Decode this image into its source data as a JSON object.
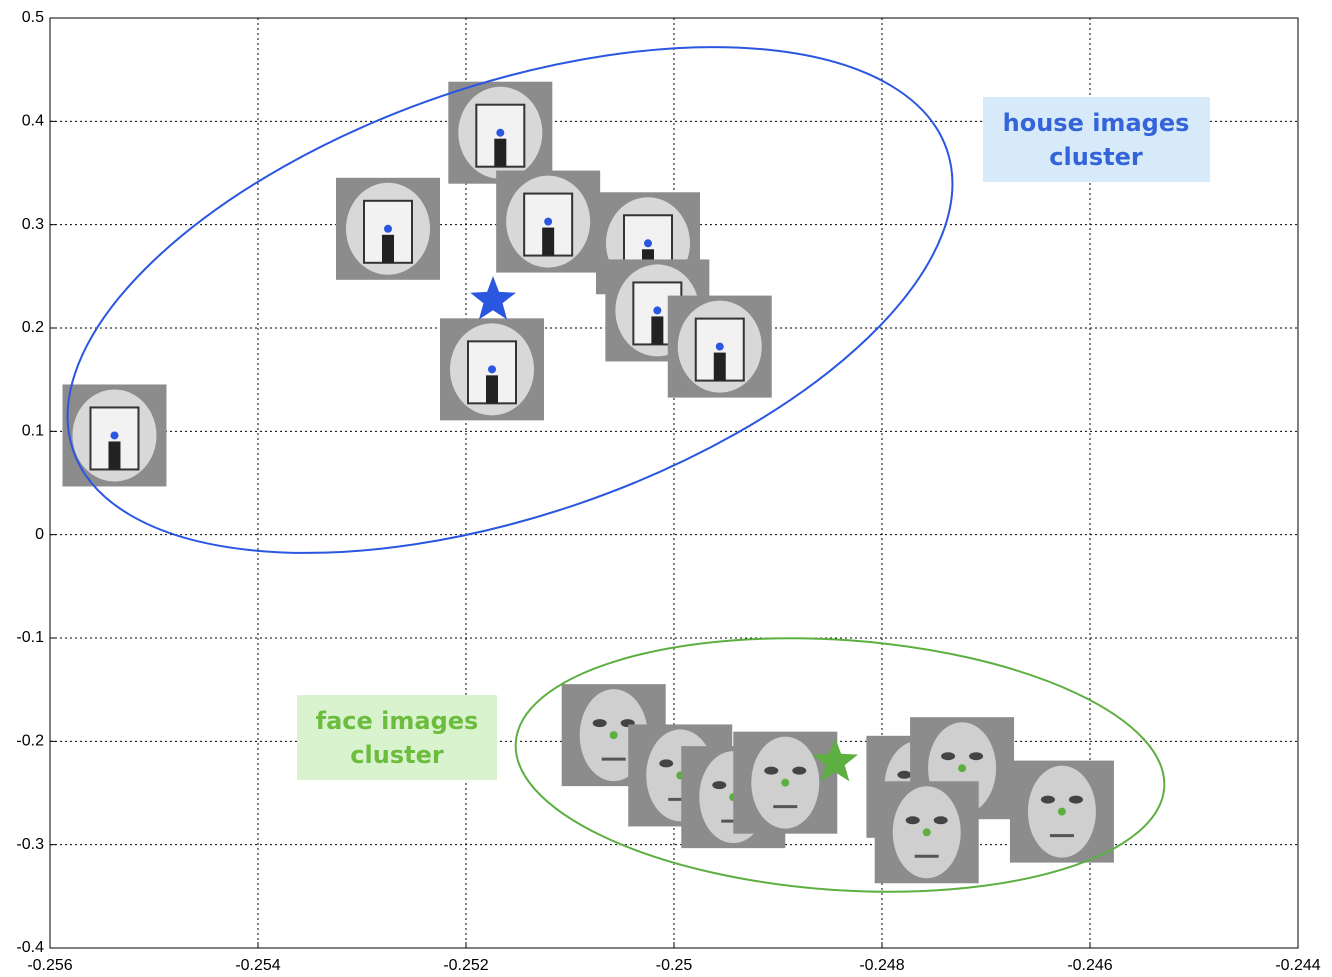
{
  "chart_data": {
    "type": "scatter",
    "xlim": [
      -0.256,
      -0.244
    ],
    "xticks": [
      -0.256,
      -0.254,
      -0.252,
      -0.25,
      -0.248,
      -0.246,
      -0.244
    ],
    "ylim": [
      -0.4,
      0.5
    ],
    "yticks": [
      0.5,
      0.4,
      0.3,
      0.2,
      0.1,
      0,
      -0.1,
      -0.2,
      -0.3,
      -0.4
    ],
    "grid": true,
    "series": [
      {
        "color": "#2a56e0",
        "x": [
          -0.25538,
          -0.25275,
          -0.25167,
          -0.25121,
          -0.25025,
          -0.25016,
          -0.24956,
          -0.25175
        ],
        "y": [
          0.096,
          0.296,
          0.389,
          0.303,
          0.282,
          0.217,
          0.182,
          0.16
        ],
        "centroid": [
          -0.25174,
          0.227
        ]
      },
      {
        "color": "#5caf40",
        "x": [
          -0.25058,
          -0.24994,
          -0.24943,
          -0.24893,
          -0.24765,
          -0.24723,
          -0.24757,
          -0.24627
        ],
        "y": [
          -0.194,
          -0.233,
          -0.254,
          -0.24,
          -0.244,
          -0.226,
          -0.288,
          -0.268
        ],
        "centroid": [
          -0.24845,
          -0.22
        ]
      }
    ],
    "annotations": [
      [
        "house images",
        "cluster"
      ],
      [
        "face images",
        "cluster"
      ]
    ]
  }
}
